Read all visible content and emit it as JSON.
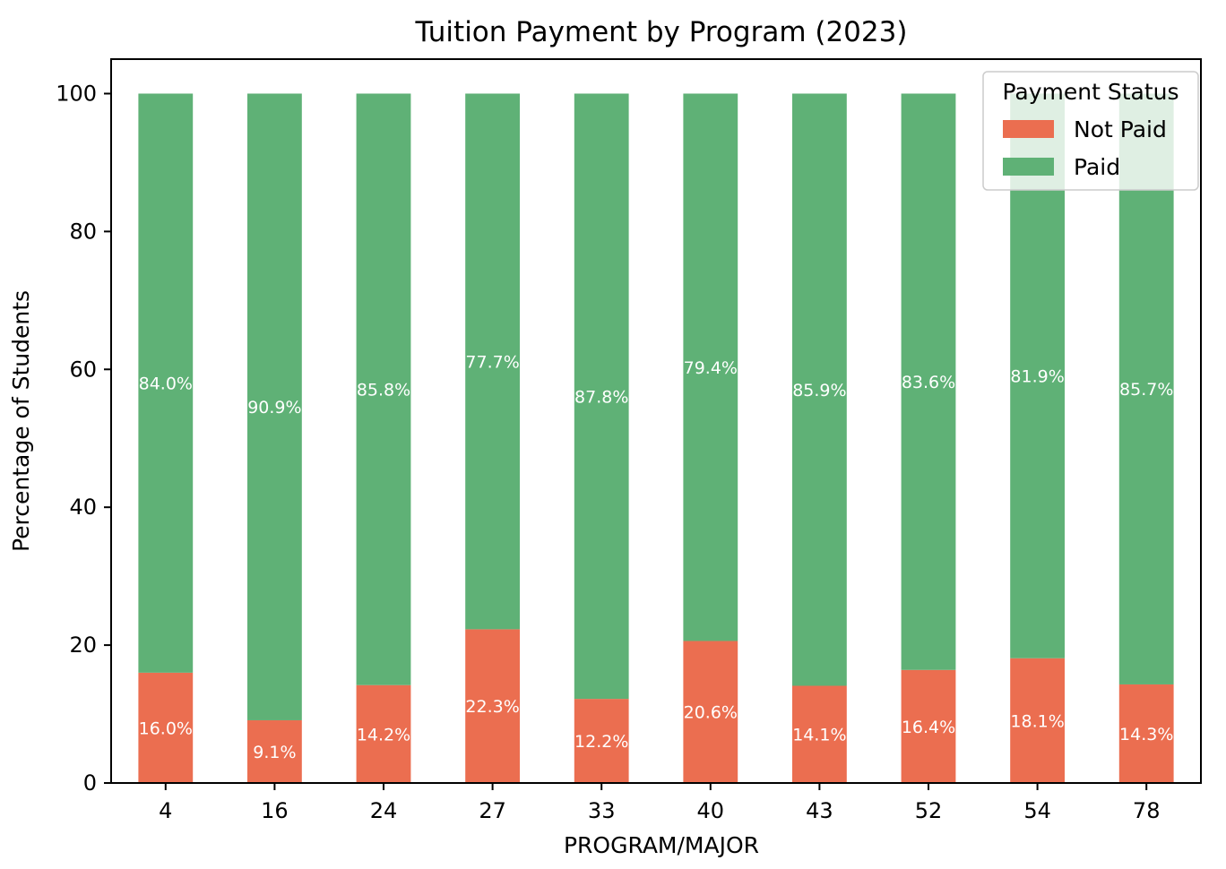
{
  "chart_data": {
    "type": "bar",
    "stacked": true,
    "title": "Tuition Payment by Program (2023)",
    "xlabel": "PROGRAM/MAJOR",
    "ylabel": "Percentage of Students",
    "ylim": [
      0,
      105
    ],
    "yticks": [
      0,
      20,
      40,
      60,
      80,
      100
    ],
    "categories": [
      "4",
      "16",
      "24",
      "27",
      "33",
      "40",
      "43",
      "52",
      "54",
      "78"
    ],
    "series": [
      {
        "name": "Not Paid",
        "color": "#eb6e50",
        "values": [
          16.0,
          9.1,
          14.2,
          22.3,
          12.2,
          20.6,
          14.1,
          16.4,
          18.1,
          14.3
        ],
        "labels": [
          "16.0%",
          "9.1%",
          "14.2%",
          "22.3%",
          "12.2%",
          "20.6%",
          "14.1%",
          "16.4%",
          "18.1%",
          "14.3%"
        ]
      },
      {
        "name": "Paid",
        "color": "#5fb176",
        "values": [
          84.0,
          90.9,
          85.8,
          77.7,
          87.8,
          79.4,
          85.9,
          83.6,
          81.9,
          85.7
        ],
        "labels": [
          "84.0%",
          "90.9%",
          "85.8%",
          "77.7%",
          "87.8%",
          "79.4%",
          "85.9%",
          "83.6%",
          "81.9%",
          "85.7%"
        ]
      }
    ],
    "legend": {
      "title": "Payment Status",
      "position": "top-right"
    },
    "grid": false
  }
}
